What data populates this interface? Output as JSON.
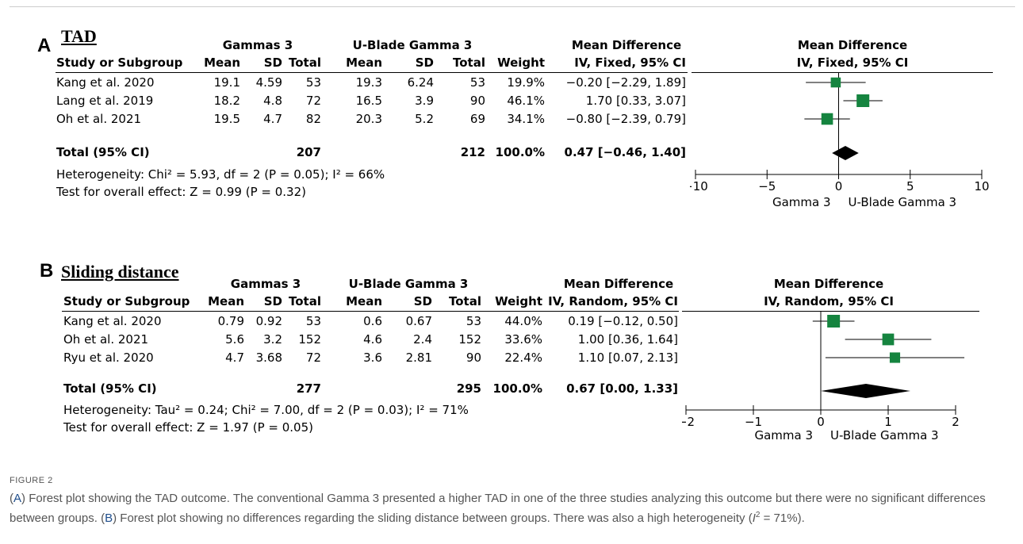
{
  "chart_data": [
    {
      "type": "forest",
      "panel": "A",
      "title": "TAD",
      "group1": "Gammas 3",
      "group2": "U-Blade Gamma 3",
      "columns": [
        "Study or Subgroup",
        "Mean",
        "SD",
        "Total",
        "Mean",
        "SD",
        "Total",
        "Weight",
        "IV, Fixed, 95% CI"
      ],
      "effect_header": "Mean Difference",
      "plot_header_1": "Mean Difference",
      "plot_header_2": "IV, Fixed, 95% CI",
      "studies": [
        {
          "name": "Kang et al. 2020",
          "mean1": "19.1",
          "sd1": "4.59",
          "n1": "53",
          "mean2": "19.3",
          "sd2": "6.24",
          "n2": "53",
          "weight": "19.9%",
          "ci_text": "−0.20 [−2.29, 1.89]",
          "md": -0.2,
          "lo": -2.29,
          "hi": 1.89,
          "w": 19.9
        },
        {
          "name": "Lang et al. 2019",
          "mean1": "18.2",
          "sd1": "4.8",
          "n1": "72",
          "mean2": "16.5",
          "sd2": "3.9",
          "n2": "90",
          "weight": "46.1%",
          "ci_text": "1.70 [0.33, 3.07]",
          "md": 1.7,
          "lo": 0.33,
          "hi": 3.07,
          "w": 46.1
        },
        {
          "name": "Oh et al. 2021",
          "mean1": "19.5",
          "sd1": "4.7",
          "n1": "82",
          "mean2": "20.3",
          "sd2": "5.2",
          "n2": "69",
          "weight": "34.1%",
          "ci_text": "−0.80 [−2.39, 0.79]",
          "md": -0.8,
          "lo": -2.39,
          "hi": 0.79,
          "w": 34.1
        }
      ],
      "total": {
        "name": "Total (95% CI)",
        "n1": "207",
        "n2": "212",
        "weight": "100.0%",
        "ci_text": "0.47 [−0.46, 1.40]",
        "md": 0.47,
        "lo": -0.46,
        "hi": 1.4
      },
      "heterogeneity": "Heterogeneity: Chi² = 5.93, df = 2 (P = 0.05); I² = 66%",
      "overall": "Test for overall effect: Z = 0.99 (P = 0.32)",
      "xlim": [
        -10,
        10
      ],
      "ticks": [
        -10,
        -5,
        0,
        5,
        10
      ],
      "tick_labels": [
        "−10",
        "−5",
        "0",
        "5",
        "10"
      ],
      "favours_left": "Gamma 3",
      "favours_right": "U-Blade Gamma 3"
    },
    {
      "type": "forest",
      "panel": "B",
      "title": "Sliding distance",
      "group1": "Gammas 3",
      "group2": "U-Blade Gamma 3",
      "columns": [
        "Study or Subgroup",
        "Mean",
        "SD",
        "Total",
        "Mean",
        "SD",
        "Total",
        "Weight",
        "IV, Random, 95% CI"
      ],
      "effect_header": "Mean Difference",
      "plot_header_1": "Mean Difference",
      "plot_header_2": "IV, Random, 95% CI",
      "studies": [
        {
          "name": "Kang et al. 2020",
          "mean1": "0.79",
          "sd1": "0.92",
          "n1": "53",
          "mean2": "0.6",
          "sd2": "0.67",
          "n2": "53",
          "weight": "44.0%",
          "ci_text": "0.19 [−0.12, 0.50]",
          "md": 0.19,
          "lo": -0.12,
          "hi": 0.5,
          "w": 44.0
        },
        {
          "name": "Oh et al. 2021",
          "mean1": "5.6",
          "sd1": "3.2",
          "n1": "152",
          "mean2": "4.6",
          "sd2": "2.4",
          "n2": "152",
          "weight": "33.6%",
          "ci_text": "1.00 [0.36, 1.64]",
          "md": 1.0,
          "lo": 0.36,
          "hi": 1.64,
          "w": 33.6
        },
        {
          "name": "Ryu et al. 2020",
          "mean1": "4.7",
          "sd1": "3.68",
          "n1": "72",
          "mean2": "3.6",
          "sd2": "2.81",
          "n2": "90",
          "weight": "22.4%",
          "ci_text": "1.10 [0.07, 2.13]",
          "md": 1.1,
          "lo": 0.07,
          "hi": 2.13,
          "w": 22.4
        }
      ],
      "total": {
        "name": "Total (95% CI)",
        "n1": "277",
        "n2": "295",
        "weight": "100.0%",
        "ci_text": "0.67 [0.00, 1.33]",
        "md": 0.67,
        "lo": 0.0,
        "hi": 1.33
      },
      "heterogeneity": "Heterogeneity: Tau² = 0.24; Chi² = 7.00, df = 2 (P = 0.03); I² = 71%",
      "overall": "Test for overall effect: Z = 1.97 (P = 0.05)",
      "xlim": [
        -2,
        2
      ],
      "ticks": [
        -2,
        -1,
        0,
        1,
        2
      ],
      "tick_labels": [
        "−2",
        "−1",
        "0",
        "1",
        "2"
      ],
      "favours_left": "Gamma 3",
      "favours_right": "U-Blade Gamma 3"
    }
  ],
  "figure_label": "FIGURE 2",
  "caption": {
    "a_label": "A",
    "a_text": "Forest plot showing the TAD outcome. The conventional Gamma 3 presented a higher TAD in one of the three studies analyzing this outcome but there were no significant differences between groups.",
    "b_label": "B",
    "b_text": "Forest plot showing no differences regarding the sliding distance between groups. There was also a high heterogeneity (",
    "i2_symbol": "I",
    "i2_sup": "2",
    "i2_value": "= 71%).",
    "open_paren": "(",
    "close_paren": ")"
  }
}
